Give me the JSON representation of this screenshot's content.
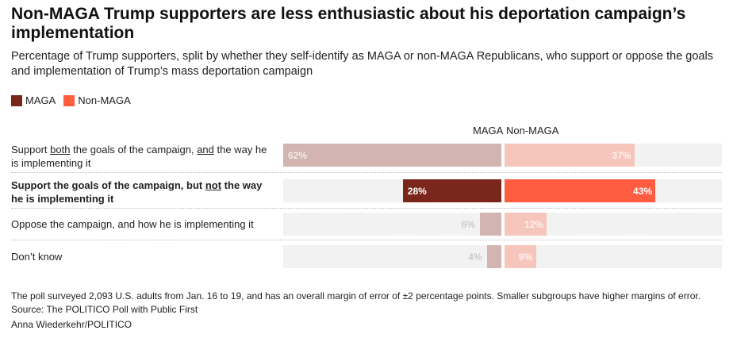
{
  "title": "Non-MAGA Trump supporters are less enthusiastic about his deportation campaign’s implementation",
  "subtitle": "Percentage of Trump supporters, split by whether they self-identify as MAGA or non-MAGA Republicans, who support or oppose the goals and implementation of Trump’s mass deportation campaign",
  "legend": [
    {
      "label": "MAGA",
      "color": "#7a261a"
    },
    {
      "label": "Non-MAGA",
      "color": "#ff5c40"
    }
  ],
  "chart_data": {
    "type": "bar",
    "orientation": "horizontal-split",
    "categories": [
      "Support both the goals of the campaign, and the way he is implementing it",
      "Support the goals of the campaign, but not the way he is implementing it",
      "Oppose the campaign, and how he is implementing it",
      "Don't know"
    ],
    "highlighted_category": 1,
    "series": [
      {
        "name": "MAGA",
        "values": [
          62,
          28,
          6,
          4
        ],
        "color": "#7a261a",
        "muted_color": "#d2b5b0"
      },
      {
        "name": "Non-MAGA",
        "values": [
          37,
          43,
          12,
          9
        ],
        "color": "#ff5c40",
        "muted_color": "#f6c6bd"
      }
    ],
    "value_labels": {
      "MAGA": [
        "62%",
        "28%",
        "6%",
        "4%"
      ],
      "Non-MAGA": [
        "37%",
        "43%",
        "12%",
        "9%"
      ]
    },
    "xlim": [
      0,
      62
    ],
    "column_headers": [
      "MAGA",
      "Non-MAGA"
    ]
  },
  "labels_rich": [
    [
      {
        "t": "Support "
      },
      {
        "t": "both",
        "u": true
      },
      {
        "t": " the goals of the campaign, "
      },
      {
        "t": "and",
        "u": true
      },
      {
        "t": " the way he is implementing it"
      }
    ],
    [
      {
        "t": "Support the goals of the campaign, but "
      },
      {
        "t": "not",
        "u": true
      },
      {
        "t": " the way he is implementing it"
      }
    ],
    [
      {
        "t": "Oppose the campaign, and how he is implementing it"
      }
    ],
    [
      {
        "t": "Don’t know"
      }
    ]
  ],
  "footer": {
    "note": "The poll surveyed 2,093 U.S. adults from Jan. 16 to 19, and has an overall margin of error of ±2 percentage points. Smaller subgroups have higher margins of error.",
    "source": "Source: The POLITICO Poll with Public First",
    "credit": "Anna Wiederkehr/POLITICO"
  }
}
